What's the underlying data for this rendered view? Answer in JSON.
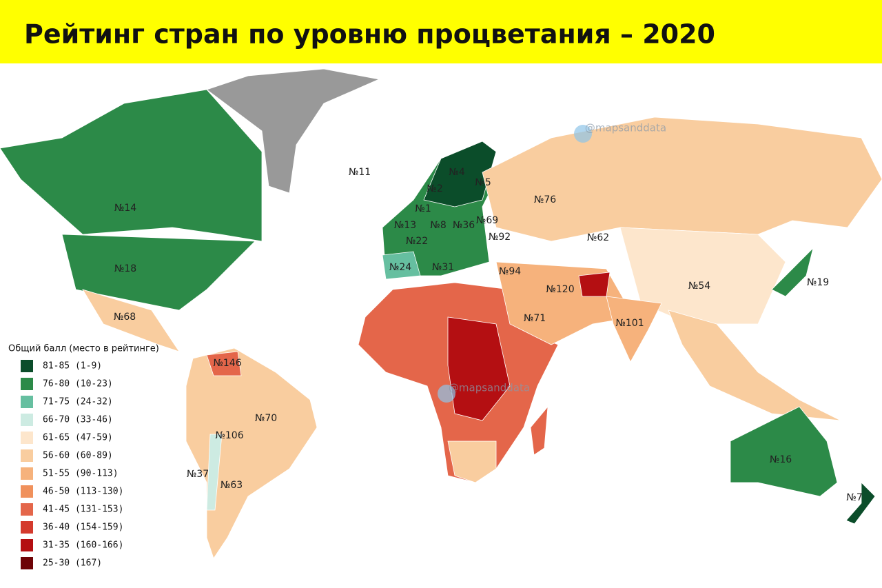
{
  "header": {
    "title": "Рейтинг стран по уровню процветания – 2020"
  },
  "legend": {
    "title": "Общий балл (место в рейтинге)",
    "items": [
      {
        "label": "81-85 (1-9)",
        "color": "#0b4d2a"
      },
      {
        "label": "76-80 (10-23)",
        "color": "#2c8a48"
      },
      {
        "label": "71-75 (24-32)",
        "color": "#66bfa0"
      },
      {
        "label": "66-70 (33-46)",
        "color": "#cdebe2"
      },
      {
        "label": "61-65 (47-59)",
        "color": "#fde6cc"
      },
      {
        "label": "56-60 (60-89)",
        "color": "#f9cd9f"
      },
      {
        "label": "51-55 (90-113)",
        "color": "#f6b27c"
      },
      {
        "label": "46-50 (113-130)",
        "color": "#f0915c"
      },
      {
        "label": "41-45 (131-153)",
        "color": "#e4664a"
      },
      {
        "label": "36-40 (154-159)",
        "color": "#d43a2d"
      },
      {
        "label": "31-35 (160-166)",
        "color": "#b40f12"
      },
      {
        "label": "25-30 (167)",
        "color": "#6e0306"
      }
    ]
  },
  "map": {
    "labels": [
      "№14",
      "№18",
      "№68",
      "№146",
      "№70",
      "№106",
      "№37",
      "№63",
      "№11",
      "№4",
      "№2",
      "№5",
      "№1",
      "№13",
      "№8",
      "№36",
      "№69",
      "№22",
      "№92",
      "№24",
      "№31",
      "№94",
      "№76",
      "№62",
      "№120",
      "№54",
      "№71",
      "№101",
      "№19",
      "№16",
      "№7"
    ],
    "watermarks": [
      "@mapsanddata",
      "@mapsanddata"
    ]
  }
}
